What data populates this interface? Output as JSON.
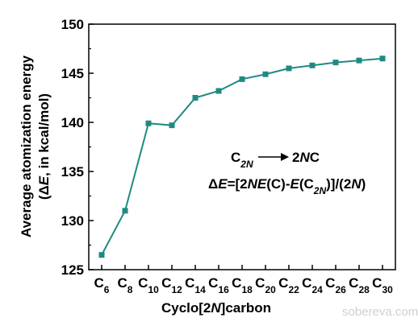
{
  "chart_data": {
    "type": "line",
    "x_labels": [
      {
        "base": "C",
        "sub": "6"
      },
      {
        "base": "C",
        "sub": "8"
      },
      {
        "base": "C",
        "sub": "10"
      },
      {
        "base": "C",
        "sub": "12"
      },
      {
        "base": "C",
        "sub": "14"
      },
      {
        "base": "C",
        "sub": "16"
      },
      {
        "base": "C",
        "sub": "18"
      },
      {
        "base": "C",
        "sub": "20"
      },
      {
        "base": "C",
        "sub": "22"
      },
      {
        "base": "C",
        "sub": "24"
      },
      {
        "base": "C",
        "sub": "26"
      },
      {
        "base": "C",
        "sub": "28"
      },
      {
        "base": "C",
        "sub": "30"
      }
    ],
    "values": [
      126.5,
      131.0,
      139.9,
      139.7,
      142.5,
      143.2,
      144.4,
      144.9,
      145.5,
      145.8,
      146.1,
      146.3,
      146.5
    ],
    "ylim": [
      125,
      150
    ],
    "yticks": [
      125,
      130,
      135,
      140,
      145,
      150
    ],
    "ylabel_line1": "Average atomization energy",
    "ylabel_line2_parts": [
      {
        "text": "(",
        "italic": false
      },
      {
        "text": "Δ",
        "italic": false
      },
      {
        "text": "E",
        "italic": true
      },
      {
        "text": ", in kcal/mol)",
        "italic": false
      }
    ],
    "xlabel_parts": [
      {
        "text": "Cyclo[2",
        "italic": false
      },
      {
        "text": "N",
        "italic": true
      },
      {
        "text": "]carbon",
        "italic": false
      }
    ],
    "line_color": "#1f8a82",
    "annotation": {
      "reaction_left": {
        "base": "C",
        "sub": "2N"
      },
      "reaction_right_parts": [
        {
          "text": "2",
          "italic": false
        },
        {
          "text": "N",
          "italic": true
        },
        {
          "text": "C",
          "italic": false
        }
      ],
      "formula_parts": [
        {
          "text": "Δ",
          "italic": false,
          "sub": false
        },
        {
          "text": "E",
          "italic": true,
          "sub": false
        },
        {
          "text": "=[2",
          "italic": false,
          "sub": false
        },
        {
          "text": "NE",
          "italic": true,
          "sub": false
        },
        {
          "text": "(C)-",
          "italic": false,
          "sub": false
        },
        {
          "text": "E",
          "italic": true,
          "sub": false
        },
        {
          "text": "(C",
          "italic": false,
          "sub": false
        },
        {
          "text": "2N",
          "italic": true,
          "sub": true
        },
        {
          "text": ")]/(2",
          "italic": false,
          "sub": false
        },
        {
          "text": "N",
          "italic": true,
          "sub": false
        },
        {
          "text": ")",
          "italic": false,
          "sub": false
        }
      ]
    },
    "watermark": "sobereva.com"
  }
}
